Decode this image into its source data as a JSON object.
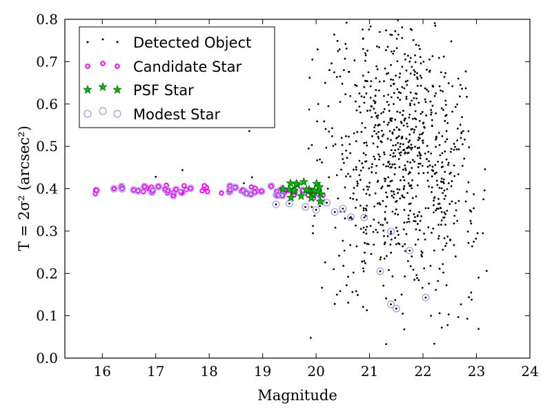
{
  "chart_data": {
    "type": "scatter",
    "xlabel": "Magnitude",
    "ylabel": "T = 2σ² (arcsec²)",
    "xlim": [
      15.3,
      24.0
    ],
    "ylim": [
      0.0,
      0.8
    ],
    "xticks": [
      "16",
      "17",
      "18",
      "19",
      "20",
      "21",
      "22",
      "23",
      "24"
    ],
    "yticks": [
      "0.0",
      "0.1",
      "0.2",
      "0.3",
      "0.4",
      "0.5",
      "0.6",
      "0.7",
      "0.8"
    ],
    "legend_position": "top-left",
    "grid": false,
    "series": [
      {
        "name": "Detected Object",
        "marker": "dot",
        "color": "#000000",
        "points": []
      },
      {
        "name": "Candidate Star",
        "marker": "small-circle",
        "color": "#ff00ff",
        "edge": "#ff00ff",
        "points": []
      },
      {
        "name": "PSF Star",
        "marker": "star",
        "color": "#00c000",
        "edge": "#006400",
        "points": []
      },
      {
        "name": "Modest Star",
        "marker": "open-circle",
        "color": "#9999ee",
        "points": []
      }
    ]
  }
}
